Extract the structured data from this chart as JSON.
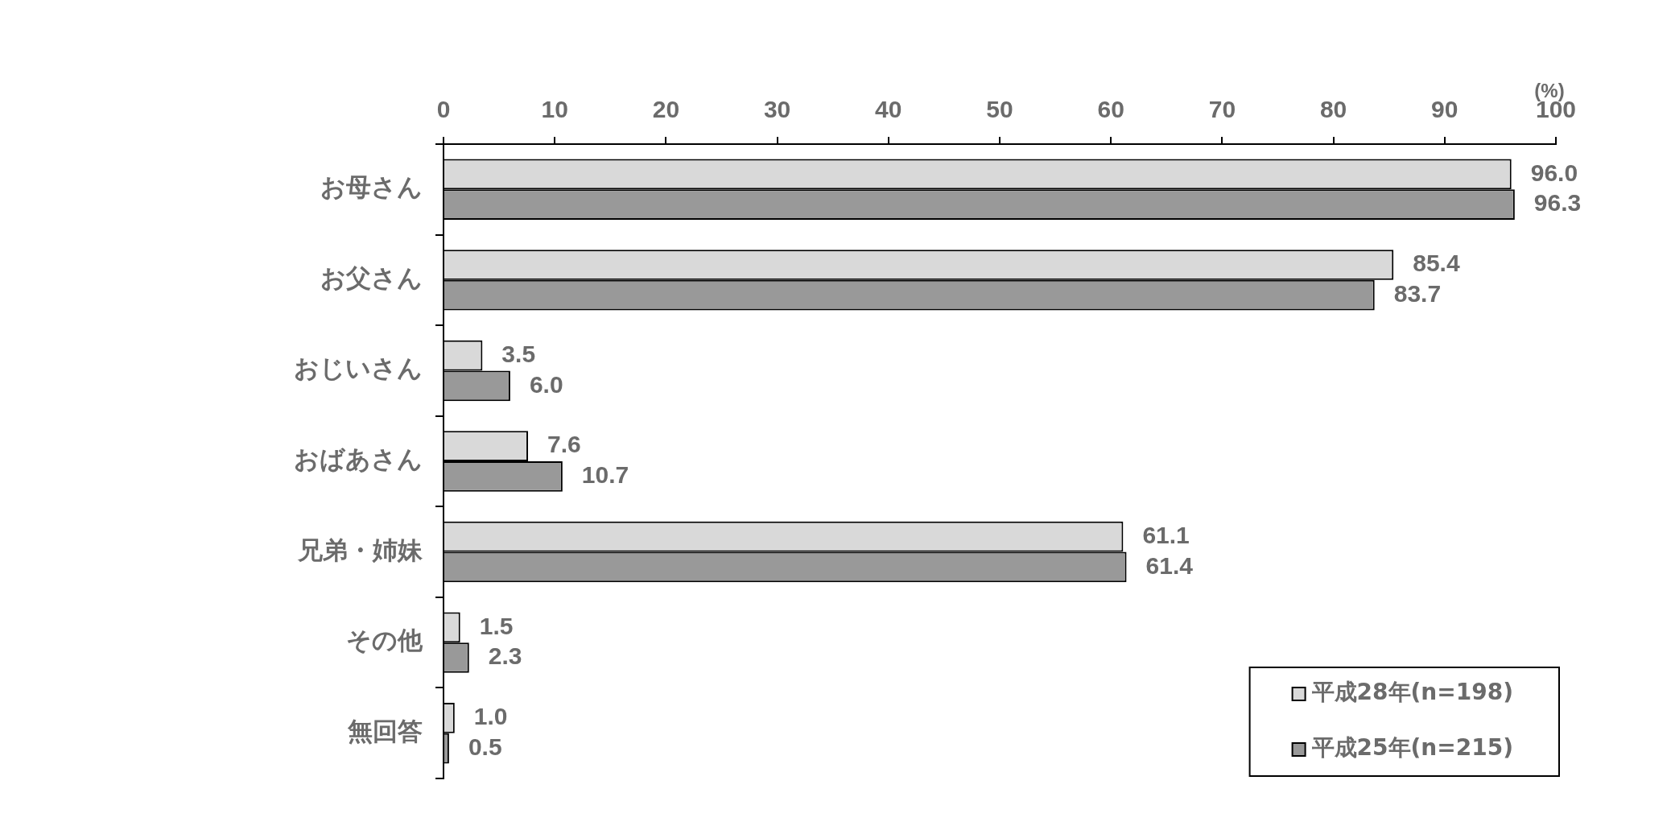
{
  "chart_data": {
    "type": "bar",
    "orientation": "horizontal",
    "categories": [
      "お母さん",
      "お父さん",
      "おじいさん",
      "おばあさん",
      "兄弟・姉妹",
      "その他",
      "無回答"
    ],
    "series": [
      {
        "name": "平成28年(n=198)",
        "color": "#d9d9d9",
        "values": [
          96.0,
          85.4,
          3.5,
          7.6,
          61.1,
          1.5,
          1.0
        ],
        "value_labels": [
          "96.0",
          "85.4",
          "3.5",
          "7.6",
          "61.1",
          "1.5",
          "1.0"
        ]
      },
      {
        "name": "平成25年(n=215)",
        "color": "#999999",
        "values": [
          96.3,
          83.7,
          6.0,
          10.7,
          61.4,
          2.3,
          0.5
        ],
        "value_labels": [
          "96.3",
          "83.7",
          "6.0",
          "10.7",
          "61.4",
          "2.3",
          "0.5"
        ]
      }
    ],
    "xlabel": "(%)",
    "xlim": [
      0,
      100
    ],
    "xticks": [
      0,
      10,
      20,
      30,
      40,
      50,
      60,
      70,
      80,
      90,
      100
    ],
    "grid": false,
    "legend": "bottom right"
  }
}
